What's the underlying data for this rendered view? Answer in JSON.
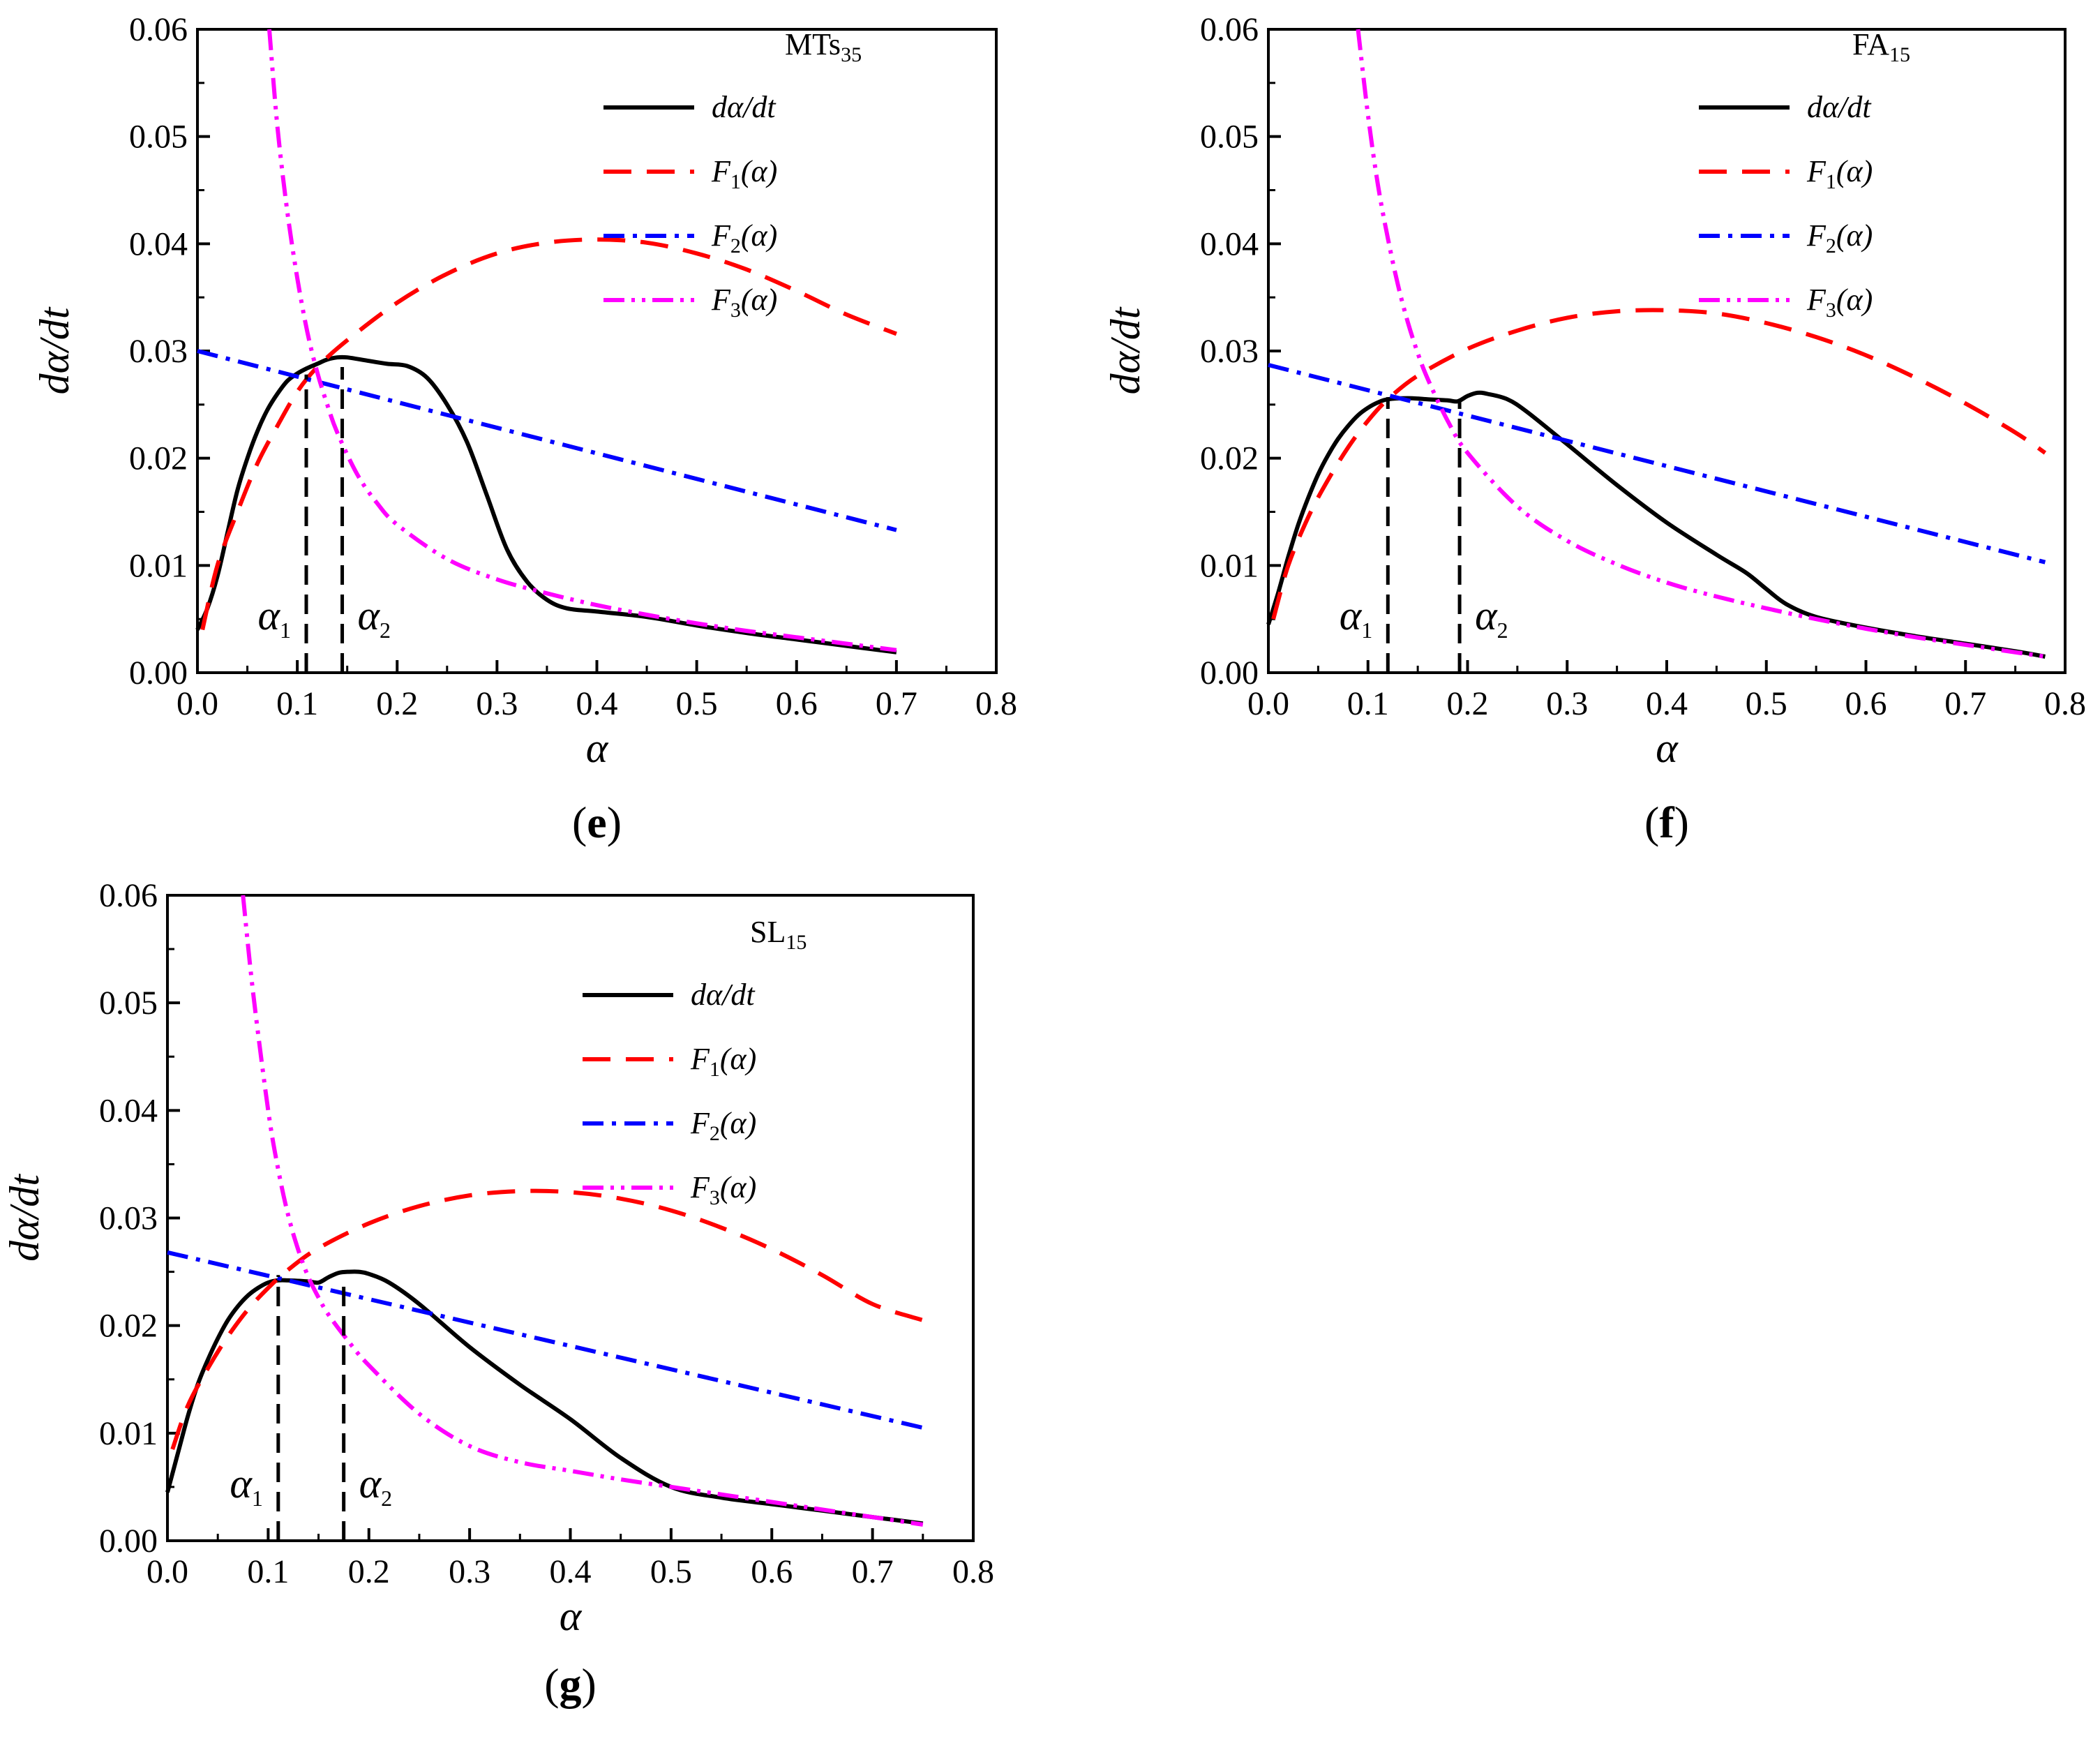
{
  "chart_data": [
    {
      "panel_label": "e",
      "type": "line",
      "sample": "MTs",
      "sample_sub": "35",
      "xlabel": "α",
      "ylabel": "dα/dt",
      "xlim": [
        0,
        0.8
      ],
      "ylim": [
        0,
        0.06
      ],
      "x_ticks": [
        "0.0",
        "0.1",
        "0.2",
        "0.3",
        "0.4",
        "0.5",
        "0.6",
        "0.7",
        "0.8"
      ],
      "y_ticks": [
        "0.00",
        "0.01",
        "0.02",
        "0.03",
        "0.04",
        "0.05",
        "0.06"
      ],
      "legend": [
        {
          "key": "exp",
          "label": "dα/dt"
        },
        {
          "key": "f1",
          "label": "F",
          "sub": "1",
          "suffix": "(α)"
        },
        {
          "key": "f2",
          "label": "F",
          "sub": "2",
          "suffix": "(α)"
        },
        {
          "key": "f3",
          "label": "F",
          "sub": "3",
          "suffix": "(α)"
        }
      ],
      "alpha_markers": [
        {
          "name": "α",
          "sub": "1",
          "x": 0.109,
          "y": 0.0278
        },
        {
          "name": "α",
          "sub": "2",
          "x": 0.145,
          "y": 0.0285
        }
      ],
      "series": [
        {
          "name": "dα/dt",
          "key": "exp",
          "x": [
            0,
            0.01,
            0.02,
            0.03,
            0.04,
            0.05,
            0.06,
            0.07,
            0.08,
            0.09,
            0.1,
            0.11,
            0.12,
            0.13,
            0.14,
            0.15,
            0.17,
            0.19,
            0.21,
            0.23,
            0.25,
            0.27,
            0.29,
            0.31,
            0.33,
            0.35,
            0.37,
            0.4,
            0.45,
            0.5,
            0.55,
            0.6,
            0.65,
            0.7
          ],
          "y": [
            0.004,
            0.006,
            0.009,
            0.013,
            0.017,
            0.02,
            0.0225,
            0.0245,
            0.026,
            0.0272,
            0.0279,
            0.0284,
            0.0288,
            0.0292,
            0.0294,
            0.0294,
            0.0291,
            0.0288,
            0.0286,
            0.0275,
            0.025,
            0.0215,
            0.0165,
            0.0115,
            0.0085,
            0.0068,
            0.006,
            0.0057,
            0.0052,
            0.0044,
            0.0037,
            0.0031,
            0.0025,
            0.0019
          ]
        },
        {
          "name": "F1(α)",
          "key": "f1",
          "x": [
            0.005,
            0.02,
            0.04,
            0.06,
            0.08,
            0.1,
            0.12,
            0.15,
            0.2,
            0.25,
            0.3,
            0.35,
            0.4,
            0.45,
            0.5,
            0.55,
            0.6,
            0.65,
            0.7
          ],
          "y": [
            0.004,
            0.01,
            0.015,
            0.0195,
            0.023,
            0.0262,
            0.0285,
            0.031,
            0.0345,
            0.0372,
            0.0391,
            0.0401,
            0.0404,
            0.0401,
            0.0391,
            0.0376,
            0.0356,
            0.0334,
            0.0316
          ]
        },
        {
          "name": "F2(α)",
          "key": "f2",
          "x": [
            0,
            0.7
          ],
          "y": [
            0.03,
            0.0133
          ]
        },
        {
          "name": "F3(α)",
          "key": "f3",
          "x": [
            0.072,
            0.08,
            0.09,
            0.1,
            0.11,
            0.12,
            0.13,
            0.14,
            0.16,
            0.18,
            0.2,
            0.25,
            0.3,
            0.35,
            0.4,
            0.45,
            0.5,
            0.55,
            0.6,
            0.65,
            0.7
          ],
          "y": [
            0.06,
            0.051,
            0.043,
            0.0368,
            0.0318,
            0.028,
            0.025,
            0.0224,
            0.0185,
            0.0158,
            0.0138,
            0.0106,
            0.0087,
            0.0074,
            0.0063,
            0.0054,
            0.0046,
            0.0039,
            0.0033,
            0.0027,
            0.0021
          ]
        }
      ]
    },
    {
      "panel_label": "f",
      "type": "line",
      "sample": "FA",
      "sample_sub": "15",
      "xlabel": "α",
      "ylabel": "dα/dt",
      "xlim": [
        0,
        0.8
      ],
      "ylim": [
        0,
        0.06
      ],
      "x_ticks": [
        "0.0",
        "0.1",
        "0.2",
        "0.3",
        "0.4",
        "0.5",
        "0.6",
        "0.7",
        "0.8"
      ],
      "y_ticks": [
        "0.00",
        "0.01",
        "0.02",
        "0.03",
        "0.04",
        "0.05",
        "0.06"
      ],
      "legend": [
        {
          "key": "exp",
          "label": "dα/dt"
        },
        {
          "key": "f1",
          "label": "F",
          "sub": "1",
          "suffix": "(α)"
        },
        {
          "key": "f2",
          "label": "F",
          "sub": "2",
          "suffix": "(α)"
        },
        {
          "key": "f3",
          "label": "F",
          "sub": "3",
          "suffix": "(α)"
        }
      ],
      "alpha_markers": [
        {
          "name": "α",
          "sub": "1",
          "x": 0.12,
          "y": 0.0257
        },
        {
          "name": "α",
          "sub": "2",
          "x": 0.192,
          "y": 0.0253
        }
      ],
      "series": [
        {
          "name": "dα/dt",
          "key": "exp",
          "x": [
            0,
            0.01,
            0.02,
            0.03,
            0.04,
            0.05,
            0.06,
            0.07,
            0.08,
            0.09,
            0.1,
            0.11,
            0.12,
            0.14,
            0.16,
            0.18,
            0.19,
            0.2,
            0.21,
            0.22,
            0.24,
            0.26,
            0.3,
            0.35,
            0.4,
            0.45,
            0.48,
            0.5,
            0.52,
            0.55,
            0.6,
            0.65,
            0.7,
            0.75,
            0.78
          ],
          "y": [
            0.0045,
            0.0075,
            0.0108,
            0.0138,
            0.0163,
            0.0185,
            0.0203,
            0.0218,
            0.023,
            0.024,
            0.0247,
            0.0252,
            0.0255,
            0.0256,
            0.0255,
            0.0254,
            0.0253,
            0.0258,
            0.0261,
            0.026,
            0.0255,
            0.0243,
            0.0213,
            0.0175,
            0.014,
            0.011,
            0.0093,
            0.0078,
            0.0064,
            0.0052,
            0.0042,
            0.0034,
            0.0027,
            0.002,
            0.0015
          ]
        },
        {
          "name": "F1(α)",
          "key": "f1",
          "x": [
            0.005,
            0.02,
            0.04,
            0.06,
            0.08,
            0.1,
            0.12,
            0.15,
            0.2,
            0.25,
            0.3,
            0.35,
            0.4,
            0.45,
            0.5,
            0.55,
            0.6,
            0.65,
            0.7,
            0.75,
            0.78
          ],
          "y": [
            0.005,
            0.01,
            0.0145,
            0.018,
            0.021,
            0.0235,
            0.0255,
            0.0277,
            0.0302,
            0.0319,
            0.0331,
            0.0337,
            0.0338,
            0.0335,
            0.0326,
            0.0313,
            0.0296,
            0.0275,
            0.0251,
            0.0224,
            0.0205
          ]
        },
        {
          "name": "F2(α)",
          "key": "f2",
          "x": [
            0,
            0.78
          ],
          "y": [
            0.0287,
            0.0103
          ]
        },
        {
          "name": "F3(α)",
          "key": "f3",
          "x": [
            0.09,
            0.1,
            0.11,
            0.12,
            0.13,
            0.14,
            0.15,
            0.16,
            0.18,
            0.2,
            0.25,
            0.3,
            0.35,
            0.4,
            0.45,
            0.5,
            0.55,
            0.6,
            0.65,
            0.7,
            0.75,
            0.78
          ],
          "y": [
            0.06,
            0.052,
            0.0455,
            0.0405,
            0.0362,
            0.0327,
            0.0298,
            0.0274,
            0.0235,
            0.0205,
            0.0155,
            0.0123,
            0.0101,
            0.0084,
            0.0071,
            0.006,
            0.005,
            0.0041,
            0.0033,
            0.0026,
            0.0019,
            0.0015
          ]
        }
      ]
    },
    {
      "panel_label": "g",
      "type": "line",
      "sample": "SL",
      "sample_sub": "15",
      "xlabel": "α",
      "ylabel": "dα/dt",
      "xlim": [
        0,
        0.8
      ],
      "ylim": [
        0,
        0.06
      ],
      "x_ticks": [
        "0.0",
        "0.1",
        "0.2",
        "0.3",
        "0.4",
        "0.5",
        "0.6",
        "0.7",
        "0.8"
      ],
      "y_ticks": [
        "0.00",
        "0.01",
        "0.02",
        "0.03",
        "0.04",
        "0.05",
        "0.06"
      ],
      "legend": [
        {
          "key": "exp",
          "label": "dα/dt"
        },
        {
          "key": "f1",
          "label": "F",
          "sub": "1",
          "suffix": "(α)"
        },
        {
          "key": "f2",
          "label": "F",
          "sub": "2",
          "suffix": "(α)"
        },
        {
          "key": "f3",
          "label": "F",
          "sub": "3",
          "suffix": "(α)"
        }
      ],
      "alpha_markers": [
        {
          "name": "α",
          "sub": "1",
          "x": 0.11,
          "y": 0.0247
        },
        {
          "name": "α",
          "sub": "2",
          "x": 0.175,
          "y": 0.0245
        }
      ],
      "series": [
        {
          "name": "dα/dt",
          "key": "exp",
          "x": [
            0,
            0.01,
            0.02,
            0.03,
            0.04,
            0.05,
            0.06,
            0.07,
            0.08,
            0.09,
            0.1,
            0.11,
            0.12,
            0.14,
            0.15,
            0.16,
            0.17,
            0.18,
            0.19,
            0.2,
            0.22,
            0.25,
            0.3,
            0.35,
            0.4,
            0.45,
            0.5,
            0.55,
            0.6,
            0.65,
            0.7,
            0.75
          ],
          "y": [
            0.0045,
            0.008,
            0.0115,
            0.0145,
            0.0168,
            0.0188,
            0.0205,
            0.0218,
            0.0228,
            0.0235,
            0.024,
            0.0242,
            0.0242,
            0.0241,
            0.024,
            0.0245,
            0.0249,
            0.025,
            0.025,
            0.0248,
            0.024,
            0.022,
            0.018,
            0.0145,
            0.0113,
            0.0077,
            0.005,
            0.004,
            0.0034,
            0.0028,
            0.0022,
            0.0016
          ]
        },
        {
          "name": "F1(α)",
          "key": "f1",
          "x": [
            0.005,
            0.02,
            0.04,
            0.06,
            0.08,
            0.1,
            0.12,
            0.15,
            0.2,
            0.25,
            0.3,
            0.35,
            0.4,
            0.45,
            0.5,
            0.55,
            0.6,
            0.65,
            0.7,
            0.75
          ],
          "y": [
            0.0085,
            0.0125,
            0.016,
            0.019,
            0.0215,
            0.0235,
            0.0252,
            0.0272,
            0.0295,
            0.0311,
            0.0321,
            0.0325,
            0.0324,
            0.0318,
            0.0307,
            0.0291,
            0.0271,
            0.0247,
            0.022,
            0.0205
          ]
        },
        {
          "name": "F2(α)",
          "key": "f2",
          "x": [
            0,
            0.75
          ],
          "y": [
            0.0268,
            0.0105
          ]
        },
        {
          "name": "F3(α)",
          "key": "f3",
          "x": [
            0.075,
            0.085,
            0.1,
            0.11,
            0.12,
            0.13,
            0.14,
            0.15,
            0.16,
            0.18,
            0.2,
            0.25,
            0.3,
            0.35,
            0.4,
            0.45,
            0.5,
            0.55,
            0.6,
            0.65,
            0.7,
            0.75
          ],
          "y": [
            0.06,
            0.051,
            0.04,
            0.0345,
            0.0302,
            0.027,
            0.0245,
            0.0226,
            0.021,
            0.0185,
            0.0163,
            0.0118,
            0.0088,
            0.0073,
            0.0065,
            0.0057,
            0.005,
            0.0043,
            0.0036,
            0.0029,
            0.0022,
            0.0015
          ]
        }
      ]
    }
  ],
  "styles": {
    "exp": {
      "color": "#000000",
      "dash": ""
    },
    "f1": {
      "color": "#ff0000",
      "dash": "40,22"
    },
    "f2": {
      "color": "#0000ff",
      "dash": "30,12,6,12"
    },
    "f3": {
      "color": "#ff00ff",
      "dash": "30,10,5,10,5,10"
    }
  }
}
